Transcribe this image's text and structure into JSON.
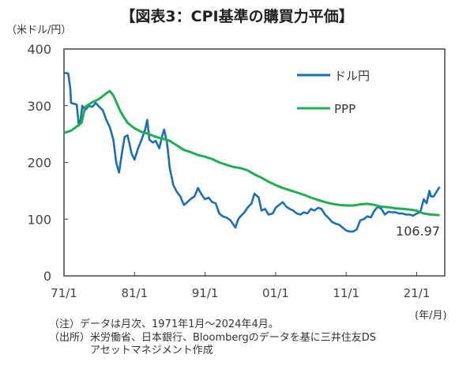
{
  "title": "【図表3：CPI基準の購買力平価】",
  "notes": [
    "（注）データは月次、1971年1月～2024年4月。",
    "（出所）米労働省、日本銀行、Bloombergのデータを基に三井住友DS",
    "　　　　アセットマネジメント作成"
  ],
  "chart_data": {
    "type": "line",
    "ylabel": "（米ドル/円）",
    "xunit": "(年/月)",
    "ylim": [
      0,
      400
    ],
    "yticks": [
      "0",
      "100",
      "200",
      "300",
      "400"
    ],
    "xticks": [
      {
        "label": "71/1",
        "x": 1971
      },
      {
        "label": "81/1",
        "x": 1981
      },
      {
        "label": "91/1",
        "x": 1991
      },
      {
        "label": "01/1",
        "x": 2001
      },
      {
        "label": "11/1",
        "x": 2011
      },
      {
        "label": "21/1",
        "x": 2021
      }
    ],
    "xlim": [
      1971,
      2024.25
    ],
    "legend": "top-right",
    "annotation": "106.97",
    "series": [
      {
        "name": "ドル円",
        "color": "#1a6fb8",
        "x": [
          1971,
          1971.6,
          1971.9,
          1972,
          1972.8,
          1973.1,
          1973.3,
          1973.6,
          1974,
          1974.5,
          1975,
          1975.5,
          1976,
          1976.5,
          1977,
          1977.5,
          1978,
          1978.4,
          1978.8,
          1979.2,
          1979.6,
          1980,
          1980.3,
          1980.6,
          1981,
          1981.5,
          1982,
          1982.5,
          1982.8,
          1983.1,
          1983.6,
          1984,
          1984.5,
          1985,
          1985.2,
          1985.6,
          1986,
          1986.5,
          1987,
          1987.5,
          1988,
          1988.5,
          1989,
          1989.5,
          1990,
          1990.3,
          1990.7,
          1991,
          1991.5,
          1992,
          1992.5,
          1993,
          1993.5,
          1994,
          1994.6,
          1995.3,
          1995.7,
          1996,
          1996.6,
          1997,
          1997.6,
          1998,
          1998.6,
          1999,
          1999.5,
          2000,
          2000.6,
          2001,
          2001.5,
          2002,
          2002.5,
          2003,
          2003.5,
          2004,
          2004.5,
          2005,
          2005.5,
          2006,
          2006.5,
          2007,
          2007.5,
          2008,
          2008.5,
          2009,
          2009.5,
          2010,
          2010.5,
          2011,
          2011.5,
          2012,
          2012.5,
          2013,
          2013.5,
          2014,
          2014.5,
          2015,
          2015.5,
          2016,
          2016.5,
          2017,
          2017.5,
          2018,
          2018.5,
          2019,
          2019.5,
          2020,
          2020.5,
          2021,
          2021.5,
          2022,
          2022.4,
          2022.8,
          2023,
          2023.4,
          2023.8,
          2024.25
        ],
        "y": [
          358,
          357,
          330,
          305,
          302,
          265,
          270,
          300,
          292,
          300,
          298,
          305,
          298,
          292,
          275,
          262,
          240,
          200,
          182,
          215,
          245,
          248,
          232,
          215,
          205,
          225,
          240,
          258,
          275,
          240,
          235,
          238,
          225,
          250,
          258,
          235,
          190,
          160,
          148,
          140,
          125,
          130,
          136,
          140,
          155,
          148,
          140,
          135,
          138,
          130,
          128,
          110,
          105,
          103,
          98,
          85,
          100,
          105,
          112,
          120,
          128,
          145,
          138,
          115,
          118,
          108,
          110,
          120,
          125,
          130,
          122,
          118,
          115,
          110,
          108,
          112,
          110,
          118,
          115,
          120,
          118,
          108,
          102,
          95,
          92,
          90,
          85,
          80,
          78,
          78,
          82,
          98,
          100,
          105,
          103,
          115,
          122,
          118,
          108,
          113,
          112,
          112,
          110,
          110,
          108,
          108,
          106,
          110,
          112,
          135,
          128,
          150,
          140,
          140,
          148,
          157
        ]
      },
      {
        "name": "PPP",
        "color": "#1eb050",
        "x": [
          1971,
          1972,
          1973,
          1973.5,
          1974,
          1975,
          1976,
          1977,
          1977.5,
          1978,
          1979,
          1980,
          1981,
          1982,
          1983,
          1984,
          1985,
          1986,
          1987,
          1988,
          1989,
          1990,
          1991,
          1992,
          1993,
          1994,
          1995,
          1996,
          1997,
          1998,
          1999,
          2000,
          2001,
          2002,
          2003,
          2004,
          2005,
          2006,
          2007,
          2008,
          2009,
          2010,
          2011,
          2012,
          2013,
          2014,
          2015,
          2016,
          2017,
          2018,
          2019,
          2020,
          2021,
          2021.5,
          2022,
          2023,
          2024.25
        ],
        "y": [
          252,
          256,
          265,
          270,
          298,
          306,
          312,
          322,
          326,
          318,
          290,
          270,
          260,
          254,
          250,
          245,
          242,
          238,
          230,
          222,
          218,
          213,
          210,
          206,
          200,
          196,
          192,
          190,
          186,
          179,
          173,
          166,
          160,
          155,
          151,
          147,
          143,
          138,
          134,
          130,
          127,
          125,
          124,
          124,
          126,
          127,
          125,
          122,
          121,
          119,
          118,
          117,
          115,
          112,
          110,
          108,
          106.97
        ]
      }
    ]
  }
}
